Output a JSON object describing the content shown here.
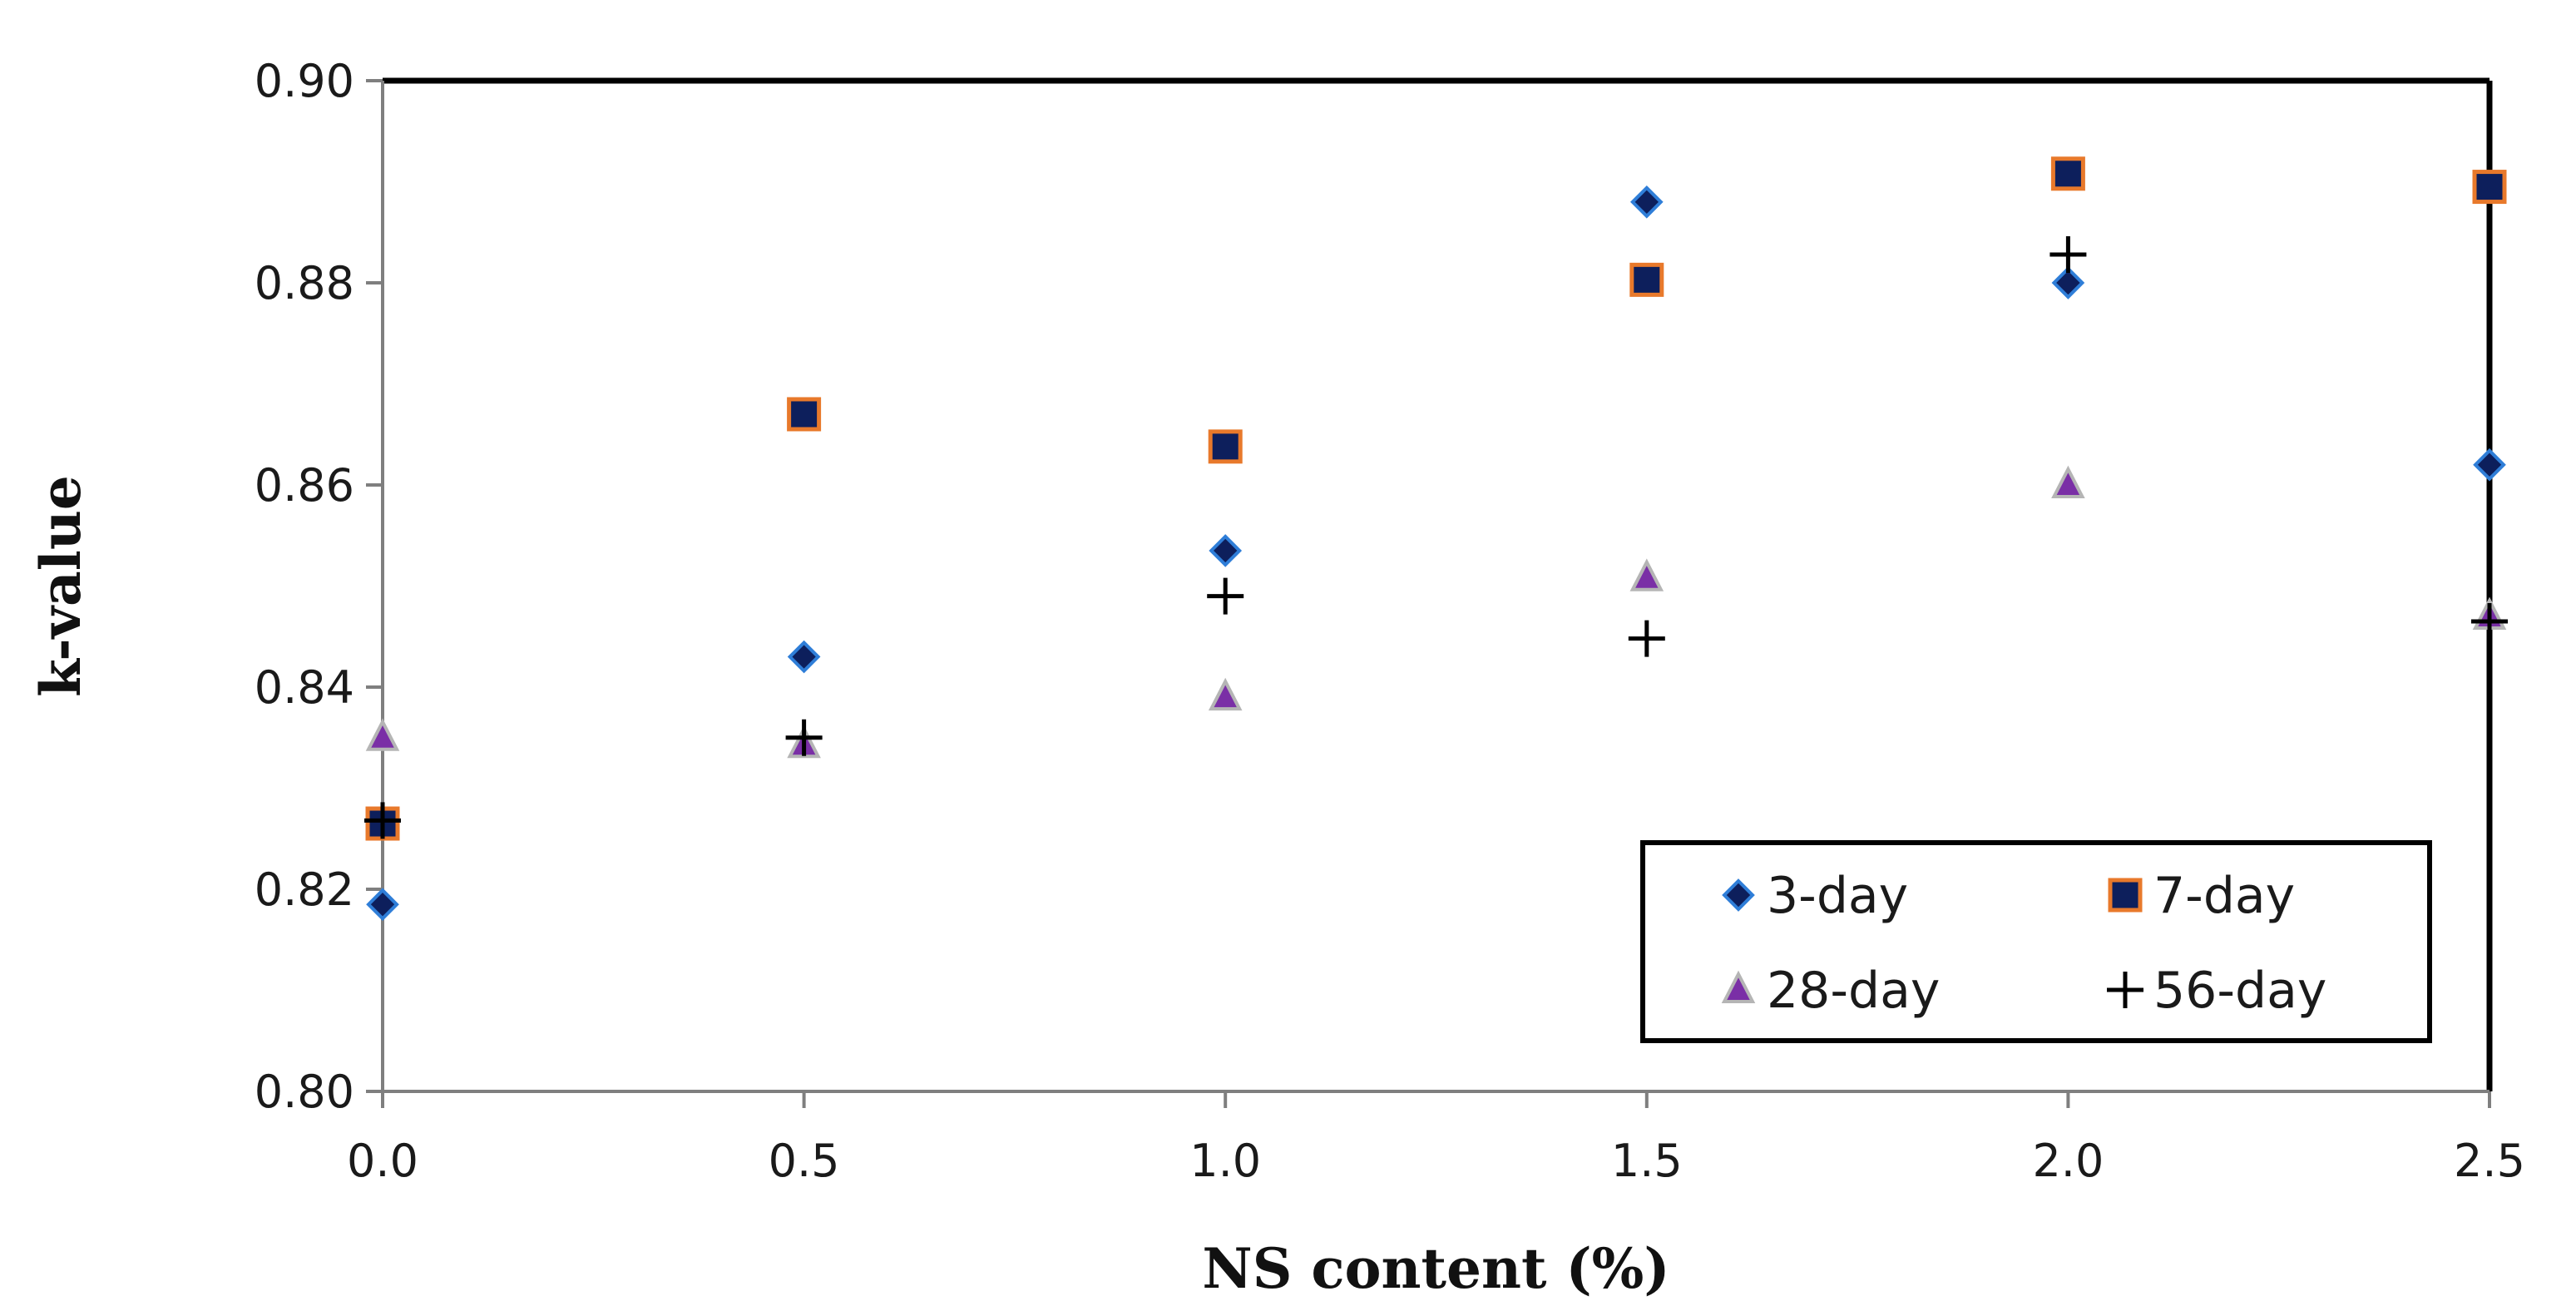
{
  "chart_data": {
    "type": "scatter",
    "title": "",
    "xlabel": "NS content (%)",
    "ylabel": "k-value",
    "xlim": [
      0.0,
      2.5
    ],
    "ylim": [
      0.8,
      0.9
    ],
    "xticks": [
      "0.0",
      "0.5",
      "1.0",
      "1.5",
      "2.0",
      "2.5"
    ],
    "yticks": [
      "0.80",
      "0.82",
      "0.84",
      "0.86",
      "0.88",
      "0.90"
    ],
    "grid": false,
    "legend_position": "bottom-right",
    "series": [
      {
        "name": "3-day",
        "marker": "diamond",
        "fill": "#0d1f5c",
        "stroke": "#2f7ed8",
        "x": [
          0.0,
          0.5,
          1.0,
          1.5,
          2.0,
          2.5
        ],
        "y": [
          0.8185,
          0.843,
          0.8535,
          0.888,
          0.88,
          0.862
        ]
      },
      {
        "name": "7-day",
        "marker": "square",
        "fill": "#0d1f5c",
        "stroke": "#e8792b",
        "x": [
          0.0,
          0.5,
          1.0,
          1.5,
          2.0,
          2.5
        ],
        "y": [
          0.8265,
          0.867,
          0.8638,
          0.8803,
          0.8908,
          0.8895
        ]
      },
      {
        "name": "28-day",
        "marker": "triangle",
        "fill": "#7a2fa6",
        "stroke": "#b5b5b5",
        "x": [
          0.0,
          0.5,
          1.0,
          1.5,
          2.0,
          2.5
        ],
        "y": [
          0.835,
          0.8343,
          0.839,
          0.8508,
          0.86,
          0.847
        ]
      },
      {
        "name": "56-day",
        "marker": "plus",
        "fill": "#000000",
        "stroke": "#000000",
        "x": [
          0.0,
          0.5,
          1.0,
          1.5,
          2.0,
          2.5
        ],
        "y": [
          0.8268,
          0.835,
          0.849,
          0.8448,
          0.8828,
          0.8465
        ]
      }
    ]
  }
}
